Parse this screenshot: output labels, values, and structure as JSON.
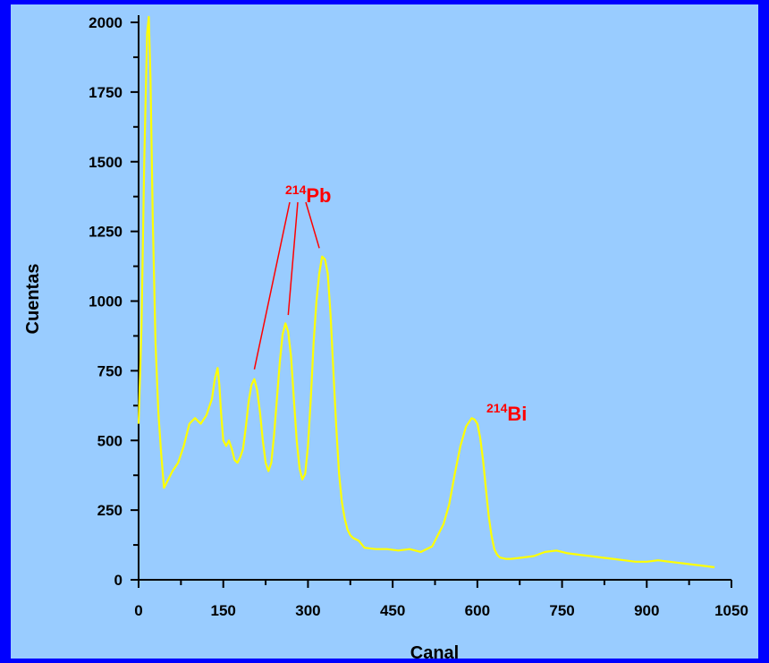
{
  "chart_data": {
    "type": "line",
    "title": "",
    "xlabel": "Canal",
    "ylabel": "Cuentas",
    "xlim": [
      0,
      1050
    ],
    "ylim": [
      0,
      2000
    ],
    "x_ticks": [
      0,
      150,
      300,
      450,
      600,
      750,
      900,
      1050
    ],
    "y_ticks": [
      0,
      250,
      500,
      750,
      1000,
      1250,
      1500,
      1750,
      2000
    ],
    "grid": false,
    "line_color": "#ffff00",
    "background_color": "#99ccff",
    "frame_color": "#0000ff",
    "annotation_color": "#ff0000",
    "annotations": [
      {
        "sup": "214",
        "label": "Pb",
        "targets": [
          [
            205,
            755
          ],
          [
            265,
            950
          ],
          [
            320,
            1190
          ]
        ]
      },
      {
        "sup": "214",
        "label": "Bi",
        "targets": []
      }
    ],
    "series": [
      {
        "x": [
          0,
          5,
          10,
          15,
          18,
          21,
          25,
          30,
          35,
          40,
          45,
          50,
          60,
          70,
          80,
          90,
          100,
          110,
          120,
          130,
          135,
          140,
          143,
          146,
          150,
          155,
          160,
          165,
          170,
          175,
          180,
          185,
          190,
          195,
          200,
          205,
          210,
          215,
          220,
          225,
          230,
          235,
          240,
          245,
          250,
          255,
          260,
          265,
          270,
          275,
          280,
          285,
          290,
          295,
          300,
          305,
          310,
          315,
          320,
          325,
          330,
          335,
          340,
          345,
          350,
          355,
          360,
          365,
          370,
          375,
          380,
          390,
          400,
          420,
          440,
          460,
          480,
          500,
          520,
          540,
          550,
          560,
          570,
          580,
          590,
          595,
          600,
          605,
          610,
          615,
          620,
          625,
          630,
          635,
          640,
          650,
          660,
          680,
          700,
          720,
          740,
          760,
          780,
          800,
          820,
          840,
          860,
          880,
          900,
          920,
          940,
          960,
          980,
          1000,
          1020
        ],
        "y": [
          560,
          900,
          1500,
          1960,
          2020,
          1800,
          1300,
          850,
          600,
          450,
          330,
          350,
          390,
          420,
          480,
          560,
          580,
          560,
          590,
          650,
          720,
          760,
          700,
          600,
          500,
          480,
          500,
          470,
          430,
          420,
          440,
          470,
          550,
          640,
          700,
          720,
          680,
          600,
          500,
          420,
          390,
          420,
          520,
          650,
          780,
          880,
          920,
          890,
          800,
          650,
          500,
          400,
          360,
          380,
          480,
          650,
          850,
          1000,
          1100,
          1160,
          1150,
          1100,
          950,
          750,
          550,
          380,
          280,
          220,
          180,
          160,
          150,
          140,
          115,
          110,
          110,
          105,
          110,
          100,
          120,
          200,
          270,
          380,
          480,
          550,
          580,
          575,
          560,
          510,
          430,
          330,
          230,
          160,
          110,
          90,
          80,
          75,
          75,
          80,
          85,
          100,
          105,
          95,
          90,
          85,
          80,
          75,
          70,
          65,
          65,
          70,
          65,
          60,
          55,
          50,
          45
        ]
      }
    ]
  }
}
